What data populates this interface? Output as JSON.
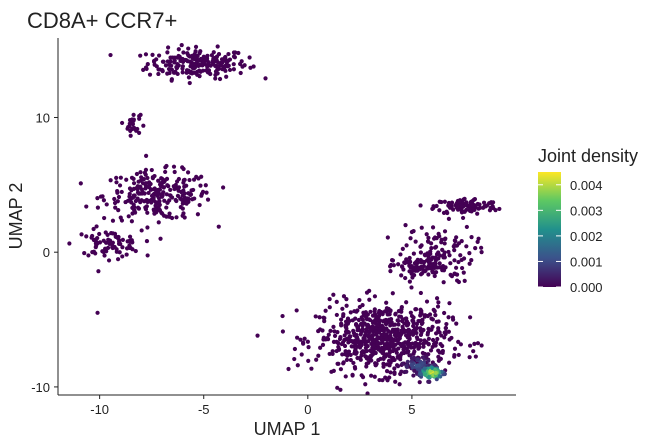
{
  "chart_data": {
    "type": "scatter",
    "title": "CD8A+ CCR7+",
    "xlabel": "UMAP 1",
    "ylabel": "UMAP 2",
    "xlim": [
      -12,
      10
    ],
    "ylim": [
      -10.6,
      15.9
    ],
    "x_ticks": [
      -10,
      -5,
      0,
      5
    ],
    "y_ticks": [
      -10,
      0,
      10
    ],
    "grid": false,
    "legend": {
      "title": "Joint density",
      "position": "right",
      "range": [
        0,
        0.0045
      ],
      "ticks": [
        "0.000",
        "0.001",
        "0.002",
        "0.003",
        "0.004"
      ],
      "tick_values": [
        0.0,
        0.001,
        0.002,
        0.003,
        0.004
      ]
    },
    "colors": {
      "low": "#440154",
      "mid1": "#3b528b",
      "mid2": "#21908c",
      "mid3": "#5dc863",
      "high": "#fde725"
    },
    "clusters": [
      {
        "cx": -5.3,
        "cy": 14.0,
        "sx": 1.2,
        "sy": 0.55,
        "n": 220,
        "density": 0.0
      },
      {
        "cx": -8.4,
        "cy": 9.5,
        "sx": 0.18,
        "sy": 0.4,
        "n": 25,
        "density": 0.0
      },
      {
        "cx": -7.2,
        "cy": 4.2,
        "sx": 1.3,
        "sy": 0.9,
        "n": 260,
        "density": 0.0
      },
      {
        "cx": -9.6,
        "cy": 0.6,
        "sx": 0.8,
        "sy": 0.5,
        "n": 80,
        "density": 0.0
      },
      {
        "cx": 7.6,
        "cy": 3.4,
        "sx": 0.75,
        "sy": 0.3,
        "n": 110,
        "density": 0.0
      },
      {
        "cx": 6.2,
        "cy": -0.1,
        "sx": 0.9,
        "sy": 1.1,
        "n": 120,
        "density": 0.0
      },
      {
        "cx": 5.3,
        "cy": -1.1,
        "sx": 0.6,
        "sy": 0.35,
        "n": 70,
        "density": 0.0
      },
      {
        "cx": 3.6,
        "cy": -6.4,
        "sx": 1.6,
        "sy": 1.3,
        "n": 700,
        "density": 0.0
      },
      {
        "cx": 5.3,
        "cy": -8.4,
        "sx": 0.4,
        "sy": 0.35,
        "n": 60,
        "density": 0.0012
      },
      {
        "cx": 5.95,
        "cy": -8.95,
        "sx": 0.32,
        "sy": 0.28,
        "n": 70,
        "density": 0.0045
      }
    ],
    "outliers": [
      {
        "x": -10.1,
        "y": -4.5
      },
      {
        "x": 8.9,
        "y": 3.7
      },
      {
        "x": -8.1,
        "y": 10.1
      }
    ]
  }
}
